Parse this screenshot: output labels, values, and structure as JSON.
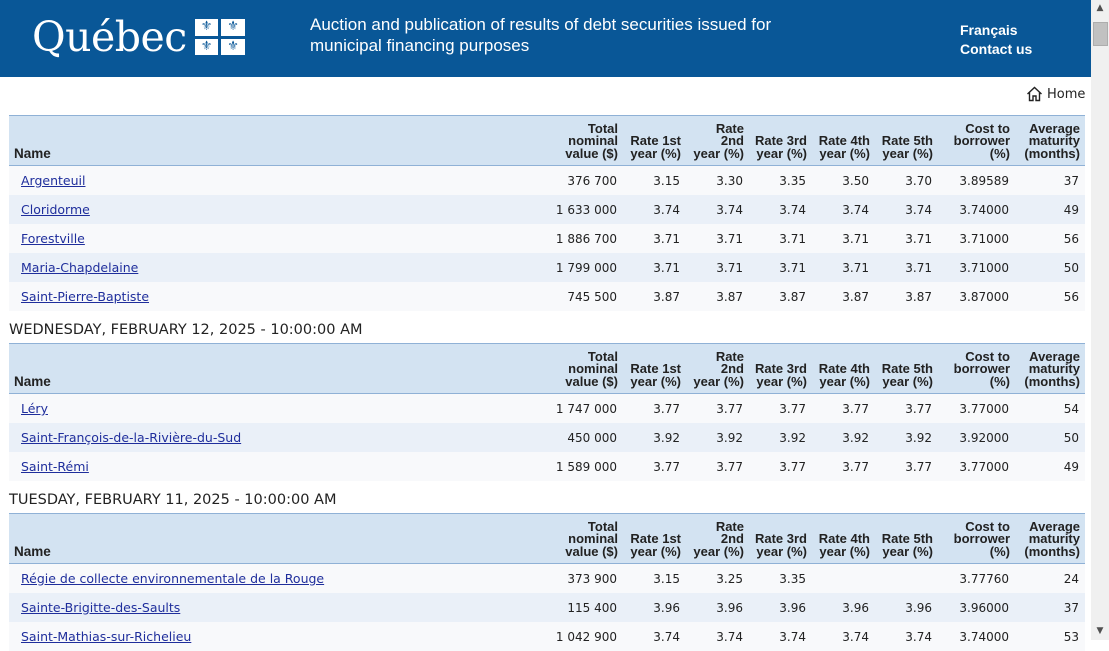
{
  "header": {
    "logo_text": "Québec",
    "title": "Auction and publication of results of debt securities issued for municipal financing purposes",
    "link_french": "Français",
    "link_contact": "Contact us"
  },
  "nav": {
    "home_label": "Home"
  },
  "columns": [
    "Name",
    "Total nominal value ($)",
    "Rate 1st year (%)",
    "Rate 2nd year (%)",
    "Rate 3rd year (%)",
    "Rate 4th year (%)",
    "Rate 5th year (%)",
    "Cost to borrower (%)",
    "Average maturity (months)"
  ],
  "sections": [
    {
      "date": "",
      "rows": [
        [
          "Argenteuil",
          "376 700",
          "3.15",
          "3.30",
          "3.35",
          "3.50",
          "3.70",
          "3.89589",
          "37"
        ],
        [
          "Cloridorme",
          "1 633 000",
          "3.74",
          "3.74",
          "3.74",
          "3.74",
          "3.74",
          "3.74000",
          "49"
        ],
        [
          "Forestville",
          "1 886 700",
          "3.71",
          "3.71",
          "3.71",
          "3.71",
          "3.71",
          "3.71000",
          "56"
        ],
        [
          "Maria-Chapdelaine",
          "1 799 000",
          "3.71",
          "3.71",
          "3.71",
          "3.71",
          "3.71",
          "3.71000",
          "50"
        ],
        [
          "Saint-Pierre-Baptiste",
          "745 500",
          "3.87",
          "3.87",
          "3.87",
          "3.87",
          "3.87",
          "3.87000",
          "56"
        ]
      ]
    },
    {
      "date": "WEDNESDAY, FEBRUARY 12, 2025 - 10:00:00 AM",
      "rows": [
        [
          "Léry",
          "1 747 000",
          "3.77",
          "3.77",
          "3.77",
          "3.77",
          "3.77",
          "3.77000",
          "54"
        ],
        [
          "Saint-François-de-la-Rivière-du-Sud",
          "450 000",
          "3.92",
          "3.92",
          "3.92",
          "3.92",
          "3.92",
          "3.92000",
          "50"
        ],
        [
          "Saint-Rémi",
          "1 589 000",
          "3.77",
          "3.77",
          "3.77",
          "3.77",
          "3.77",
          "3.77000",
          "49"
        ]
      ]
    },
    {
      "date": "TUESDAY, FEBRUARY 11, 2025 - 10:00:00 AM",
      "rows": [
        [
          "Régie de collecte environnementale de la Rouge",
          "373 900",
          "3.15",
          "3.25",
          "3.35",
          "",
          "",
          "3.77760",
          "24"
        ],
        [
          "Sainte-Brigitte-des-Saults",
          "115 400",
          "3.96",
          "3.96",
          "3.96",
          "3.96",
          "3.96",
          "3.96000",
          "37"
        ],
        [
          "Saint-Mathias-sur-Richelieu",
          "1 042 900",
          "3.74",
          "3.74",
          "3.74",
          "3.74",
          "3.74",
          "3.74000",
          "53"
        ]
      ]
    }
  ]
}
